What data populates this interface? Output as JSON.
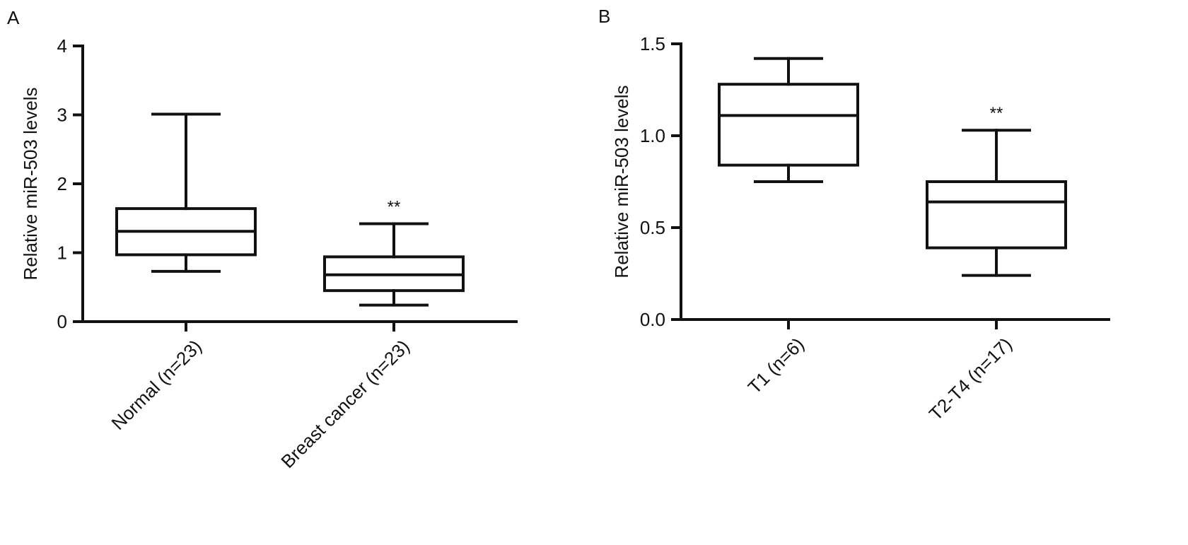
{
  "chart_data": [
    {
      "type": "box",
      "panel_label": "A",
      "title": "",
      "xlabel": "",
      "ylabel": "Relative miR-503 levels",
      "ylim": [
        0,
        4
      ],
      "yticks": [
        0,
        1,
        2,
        3,
        4
      ],
      "ytick_labels": [
        "0",
        "1",
        "2",
        "3",
        "4"
      ],
      "categories": [
        "Normal (n=23)",
        "Breast cancer (n=23)"
      ],
      "boxes": [
        {
          "min": 0.73,
          "q1": 0.97,
          "median": 1.31,
          "q3": 1.64,
          "max": 3.01,
          "annotation": ""
        },
        {
          "min": 0.24,
          "q1": 0.45,
          "median": 0.68,
          "q3": 0.94,
          "max": 1.42,
          "annotation": "**"
        }
      ]
    },
    {
      "type": "box",
      "panel_label": "B",
      "title": "",
      "xlabel": "",
      "ylabel": "Relative miR-503 levels",
      "ylim": [
        0,
        1.5
      ],
      "yticks": [
        0,
        0.5,
        1.0,
        1.5
      ],
      "ytick_labels": [
        "0.0",
        "0.5",
        "1.0",
        "1.5"
      ],
      "categories": [
        "T1 (n=6)",
        "T2-T4 (n=17)"
      ],
      "boxes": [
        {
          "min": 0.75,
          "q1": 0.84,
          "median": 1.11,
          "q3": 1.28,
          "max": 1.42,
          "annotation": ""
        },
        {
          "min": 0.24,
          "q1": 0.39,
          "median": 0.64,
          "q3": 0.75,
          "max": 1.03,
          "annotation": "**"
        }
      ]
    }
  ]
}
